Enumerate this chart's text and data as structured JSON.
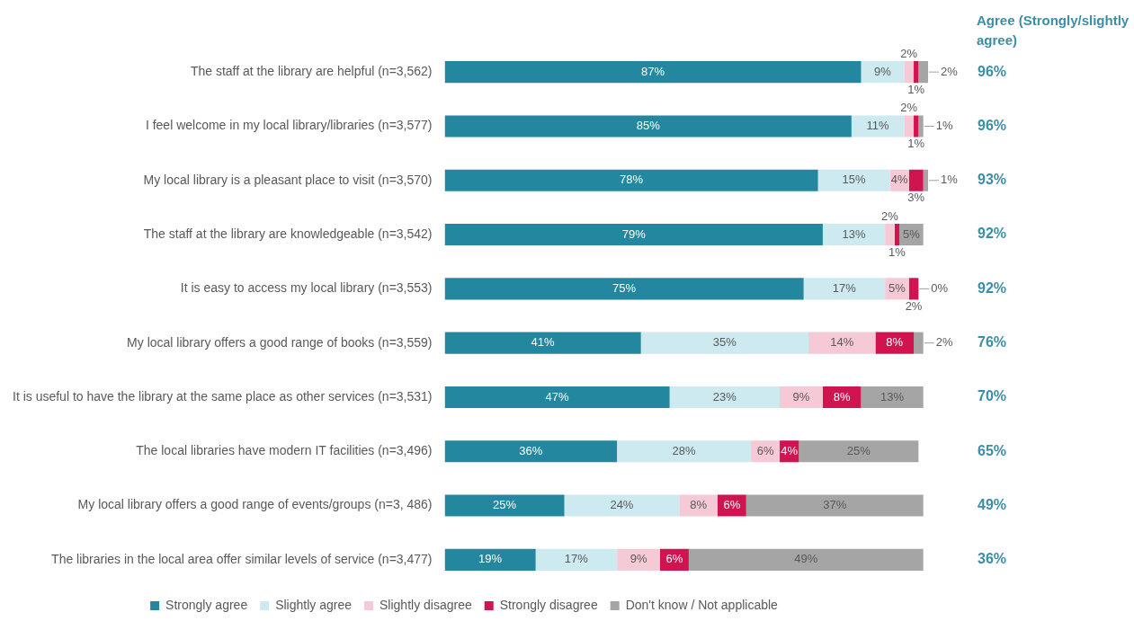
{
  "chart_data": {
    "type": "bar",
    "orientation": "horizontal",
    "stacked": true,
    "legend": "bottom",
    "grid": false,
    "tick_labels": "y",
    "categories": [
      "The staff at the library are helpful (n=3,562)",
      "I feel welcome in my local library/libraries (n=3,577)",
      "My local library is a pleasant place to visit (n=3,570)",
      "The staff at the library are knowledgeable (n=3,542)",
      "It is easy to access my local library (n=3,553)",
      "My local library offers a good range of books (n=3,559)",
      "It is useful to have the library at the same place as other services (n=3,531)",
      "The local libraries have modern IT facilities (n=3,496)",
      "My local library offers a good range of events/groups (n=3, 486)",
      "The libraries in the local area offer similar levels of service (n=3,477)"
    ],
    "series": [
      {
        "name": "Strongly agree",
        "color": "#23879f",
        "values": [
          87,
          85,
          78,
          79,
          75,
          41,
          47,
          36,
          25,
          19
        ],
        "value_labels": [
          "87%",
          "85%",
          "78%",
          "79%",
          "75%",
          "41%",
          "47%",
          "36%",
          "25%",
          "19%"
        ]
      },
      {
        "name": "Slightly agree",
        "color": "#cdeaf1",
        "values": [
          9,
          11,
          15,
          13,
          17,
          35,
          23,
          28,
          24,
          17
        ],
        "value_labels": [
          "9%",
          "11%",
          "15%",
          "13%",
          "17%",
          "35%",
          "23%",
          "28%",
          "24%",
          "17%"
        ]
      },
      {
        "name": "Slightly disagree",
        "color": "#f6c9d7",
        "values": [
          2,
          2,
          4,
          2,
          5,
          14,
          9,
          6,
          8,
          9
        ],
        "value_labels": [
          "2%",
          "2%",
          "4%",
          "2%",
          "5%",
          "14%",
          "9%",
          "6%",
          "8%",
          "9%"
        ]
      },
      {
        "name": "Strongly disagree",
        "color": "#cf1450",
        "values": [
          1,
          1,
          3,
          1,
          2,
          8,
          8,
          4,
          6,
          6
        ],
        "value_labels": [
          "1%",
          "1%",
          "3%",
          "1%",
          "2%",
          "8%",
          "8%",
          "4%",
          "6%",
          "6%"
        ]
      },
      {
        "name": "Don't know / Not applicable",
        "color": "#a5a5a5",
        "values": [
          2,
          1,
          1,
          5,
          0,
          2,
          13,
          25,
          37,
          49
        ],
        "value_labels": [
          "2%",
          "1%",
          "1%",
          "5%",
          "0%",
          "2%",
          "13%",
          "25%",
          "37%",
          "49%"
        ]
      }
    ],
    "annotations": [
      "Agree (Strongly/slightly agree)",
      "96%",
      "96%",
      "93%",
      "92%",
      "92%",
      "76%",
      "70%",
      "65%",
      "49%",
      "36%"
    ]
  }
}
